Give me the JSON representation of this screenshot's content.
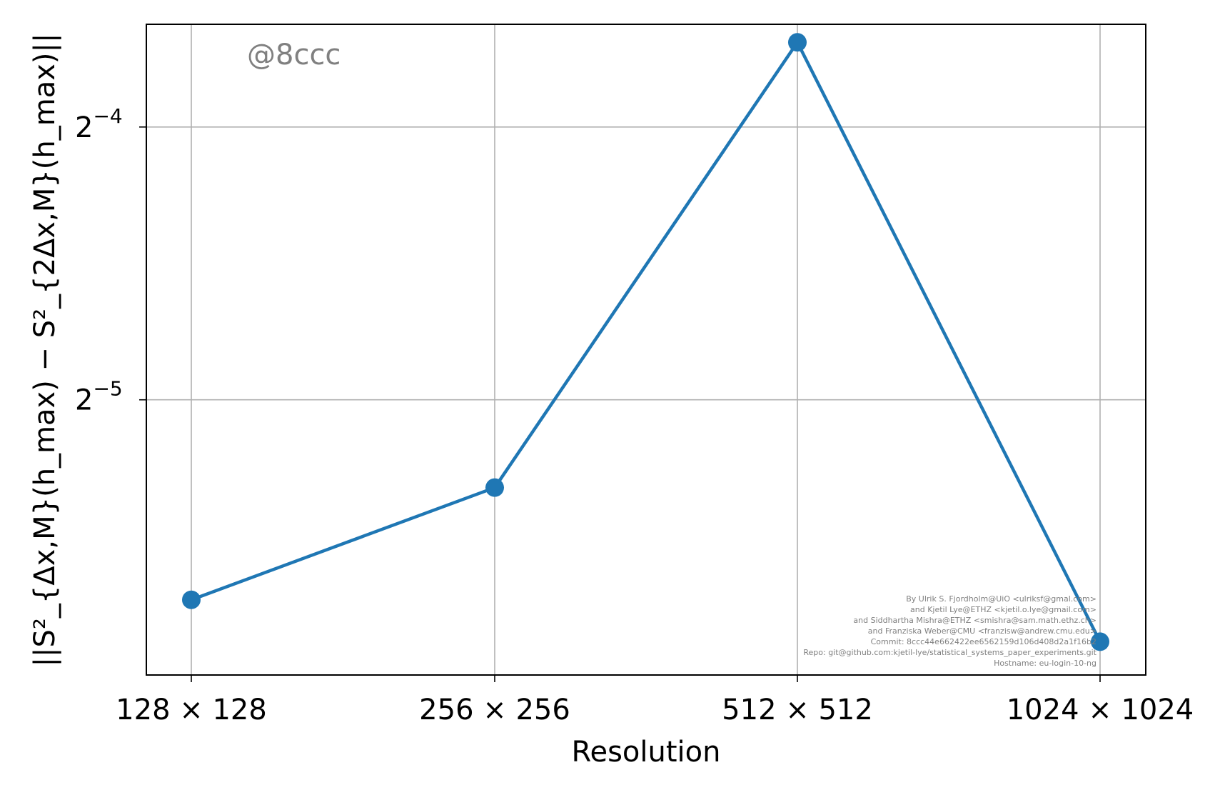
{
  "chart_data": {
    "type": "line",
    "title": "",
    "xlabel": "Resolution",
    "ylabel": "||S²_{Δx,M}(h_max) − S²_{2Δx,M}(h_max)||",
    "y_scale": "log2",
    "categories": [
      "128 × 128",
      "256 × 256",
      "512 × 512",
      "1024 × 1024"
    ],
    "series": [
      {
        "values": [
          0.0188,
          0.025,
          0.0775,
          0.0169
        ]
      }
    ],
    "y_ticks": [
      {
        "value": 0.0625,
        "base": "2",
        "exp": "−4"
      },
      {
        "value": 0.03125,
        "base": "2",
        "exp": "−5"
      }
    ],
    "ylim": [
      0.01553,
      0.08114
    ],
    "grid": true,
    "colors": {
      "line": "#1f77b4",
      "grid": "#b0b0b0",
      "watermark": "#808080"
    },
    "annotations": {
      "watermark": "@8ccc",
      "credits": [
        "By Ulrik S. Fjordholm@UiO <ulriksf@gmal.com>",
        "and Kjetil Lye@ETHZ <kjetil.o.lye@gmail.com>",
        "and Siddhartha Mishra@ETHZ <smishra@sam.math.ethz.ch>",
        "and Franziska Weber@CMU <franzisw@andrew.cmu.edu>",
        "Commit: 8ccc44e662422ee6562159d106d408d2a1f16b2",
        "Repo: git@github.com:kjetil-lye/statistical_systems_paper_experiments.git",
        "Hostname: eu-login-10-ng"
      ]
    }
  }
}
